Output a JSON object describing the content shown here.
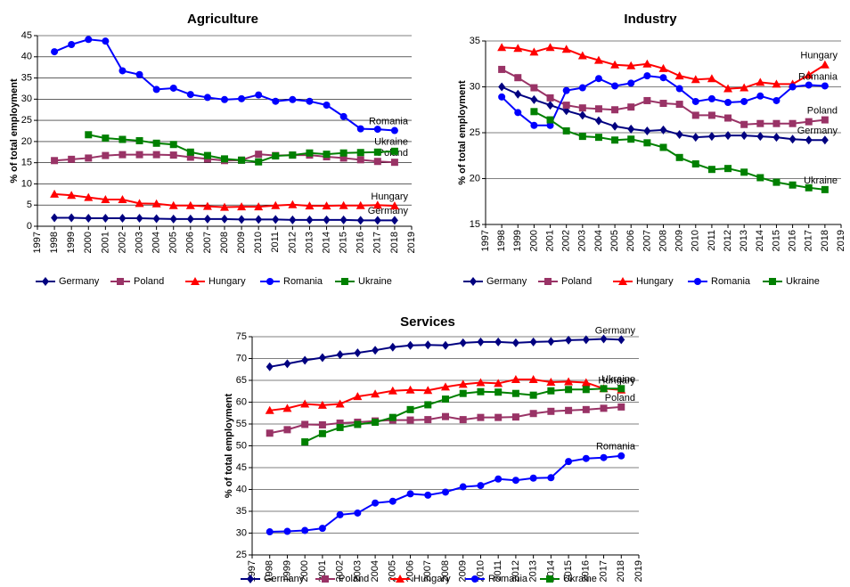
{
  "chart_data": [
    {
      "type": "line",
      "title": "Agriculture",
      "y_label": "% of total employment",
      "x": [
        1998,
        1999,
        2000,
        2001,
        2002,
        2003,
        2004,
        2005,
        2006,
        2007,
        2008,
        2009,
        2010,
        2011,
        2012,
        2013,
        2014,
        2015,
        2016,
        2017,
        2018
      ],
      "xlim": [
        1997,
        2019
      ],
      "xticks": [
        1997,
        1998,
        1999,
        2000,
        2001,
        2002,
        2003,
        2004,
        2005,
        2006,
        2007,
        2008,
        2009,
        2010,
        2011,
        2012,
        2013,
        2014,
        2015,
        2016,
        2017,
        2018,
        2019
      ],
      "ylim": [
        0,
        45
      ],
      "yticks": [
        0,
        5,
        10,
        15,
        20,
        25,
        30,
        35,
        40,
        45
      ],
      "grid": true,
      "series_end_labels": true,
      "legend": "bottom",
      "series": [
        {
          "name": "Germany",
          "color": "#000080",
          "marker": "diamond",
          "values": [
            2.0,
            2.0,
            1.9,
            1.9,
            1.9,
            1.9,
            1.8,
            1.7,
            1.7,
            1.7,
            1.7,
            1.6,
            1.6,
            1.6,
            1.5,
            1.5,
            1.5,
            1.5,
            1.4,
            1.4,
            1.4
          ]
        },
        {
          "name": "Poland",
          "color": "#993366",
          "marker": "square",
          "values": [
            15.5,
            15.8,
            16.1,
            16.7,
            16.9,
            16.9,
            16.9,
            16.8,
            16.3,
            15.9,
            15.5,
            15.6,
            17.0,
            16.7,
            16.8,
            16.8,
            16.4,
            16.1,
            15.7,
            15.3,
            15.1
          ]
        },
        {
          "name": "Hungary",
          "color": "#ff0000",
          "marker": "triangle",
          "values": [
            7.6,
            7.3,
            6.8,
            6.3,
            6.3,
            5.4,
            5.3,
            4.9,
            4.9,
            4.7,
            4.5,
            4.6,
            4.6,
            4.9,
            5.1,
            4.8,
            4.8,
            4.9,
            4.9,
            5.0,
            4.8
          ]
        },
        {
          "name": "Romania",
          "color": "#0000ff",
          "marker": "circle",
          "values": [
            41.2,
            42.9,
            44.1,
            43.7,
            36.7,
            35.8,
            32.3,
            32.6,
            31.1,
            30.4,
            29.9,
            30.1,
            31.0,
            29.5,
            29.9,
            29.5,
            28.6,
            25.9,
            23.0,
            22.9,
            22.6
          ]
        },
        {
          "name": "Ukraine",
          "color": "#008000",
          "marker": "square",
          "values": [
            null,
            null,
            21.6,
            20.8,
            20.5,
            20.2,
            19.6,
            19.3,
            17.5,
            16.7,
            15.9,
            15.6,
            15.2,
            16.6,
            16.8,
            17.3,
            17.0,
            17.3,
            17.4,
            17.5,
            17.7
          ]
        }
      ]
    },
    {
      "type": "line",
      "title": "Industry",
      "y_label": "% of total employment",
      "x": [
        1998,
        1999,
        2000,
        2001,
        2002,
        2003,
        2004,
        2005,
        2006,
        2007,
        2008,
        2009,
        2010,
        2011,
        2012,
        2013,
        2014,
        2015,
        2016,
        2017,
        2018
      ],
      "xlim": [
        1997,
        2019
      ],
      "xticks": [
        1997,
        1998,
        1999,
        2000,
        2001,
        2002,
        2003,
        2004,
        2005,
        2006,
        2007,
        2008,
        2009,
        2010,
        2011,
        2012,
        2013,
        2014,
        2015,
        2016,
        2017,
        2018,
        2019
      ],
      "ylim": [
        15,
        35
      ],
      "yticks": [
        15,
        20,
        25,
        30,
        35
      ],
      "grid": true,
      "series_end_labels": true,
      "legend": "bottom",
      "series": [
        {
          "name": "Germany",
          "color": "#000080",
          "marker": "diamond",
          "values": [
            30.0,
            29.2,
            28.6,
            28.0,
            27.4,
            26.9,
            26.3,
            25.7,
            25.4,
            25.2,
            25.3,
            24.8,
            24.5,
            24.6,
            24.7,
            24.7,
            24.6,
            24.5,
            24.3,
            24.2,
            24.2
          ]
        },
        {
          "name": "Poland",
          "color": "#993366",
          "marker": "square",
          "values": [
            31.9,
            31.0,
            29.9,
            28.8,
            28.0,
            27.7,
            27.6,
            27.5,
            27.8,
            28.5,
            28.2,
            28.1,
            26.9,
            26.9,
            26.6,
            25.9,
            26.0,
            26.0,
            26.0,
            26.2,
            26.4
          ]
        },
        {
          "name": "Hungary",
          "color": "#ff0000",
          "marker": "triangle",
          "values": [
            34.3,
            34.2,
            33.8,
            34.3,
            34.1,
            33.4,
            32.9,
            32.4,
            32.3,
            32.5,
            32.0,
            31.2,
            30.8,
            30.9,
            29.8,
            29.9,
            30.5,
            30.3,
            30.3,
            31.3,
            32.4
          ]
        },
        {
          "name": "Romania",
          "color": "#0000ff",
          "marker": "circle",
          "values": [
            28.9,
            27.2,
            25.8,
            25.8,
            29.6,
            29.9,
            30.9,
            30.1,
            30.4,
            31.2,
            31.0,
            29.8,
            28.4,
            28.7,
            28.3,
            28.4,
            29.0,
            28.5,
            30.0,
            30.2,
            30.1
          ]
        },
        {
          "name": "Ukraine",
          "color": "#008000",
          "marker": "square",
          "values": [
            null,
            null,
            27.3,
            26.4,
            25.2,
            24.6,
            24.5,
            24.2,
            24.3,
            23.9,
            23.4,
            22.3,
            21.6,
            21.0,
            21.1,
            20.7,
            20.1,
            19.6,
            19.3,
            19.0,
            18.8
          ]
        }
      ]
    },
    {
      "type": "line",
      "title": "Services",
      "y_label": "% of total employment",
      "x": [
        1998,
        1999,
        2000,
        2001,
        2002,
        2003,
        2004,
        2005,
        2006,
        2007,
        2008,
        2009,
        2010,
        2011,
        2012,
        2013,
        2014,
        2015,
        2016,
        2017,
        2018
      ],
      "xlim": [
        1997,
        2019
      ],
      "xticks": [
        1997,
        1998,
        1999,
        2000,
        2001,
        2002,
        2003,
        2004,
        2005,
        2006,
        2007,
        2008,
        2009,
        2010,
        2011,
        2012,
        2013,
        2014,
        2015,
        2016,
        2017,
        2018,
        2019
      ],
      "ylim": [
        25,
        75
      ],
      "yticks": [
        25,
        30,
        35,
        40,
        45,
        50,
        55,
        60,
        65,
        70,
        75
      ],
      "grid": true,
      "series_end_labels": true,
      "legend": "bottom",
      "series": [
        {
          "name": "Germany",
          "color": "#000080",
          "marker": "diamond",
          "values": [
            68.1,
            68.8,
            69.6,
            70.2,
            70.9,
            71.3,
            71.9,
            72.6,
            73.0,
            73.1,
            73.0,
            73.6,
            73.8,
            73.8,
            73.6,
            73.8,
            73.9,
            74.2,
            74.3,
            74.5,
            74.3
          ]
        },
        {
          "name": "Poland",
          "color": "#993366",
          "marker": "square",
          "values": [
            52.9,
            53.7,
            54.9,
            54.8,
            55.2,
            55.4,
            55.7,
            55.9,
            55.9,
            56.0,
            56.7,
            56.0,
            56.5,
            56.5,
            56.6,
            57.4,
            57.9,
            58.1,
            58.3,
            58.6,
            58.9
          ]
        },
        {
          "name": "Hungary",
          "color": "#ff0000",
          "marker": "triangle",
          "values": [
            58.1,
            58.6,
            59.6,
            59.3,
            59.6,
            61.3,
            61.9,
            62.6,
            62.8,
            62.7,
            63.5,
            64.1,
            64.5,
            64.3,
            65.2,
            65.2,
            64.6,
            64.7,
            64.5,
            63.1,
            62.8
          ]
        },
        {
          "name": "Romania",
          "color": "#0000ff",
          "marker": "circle",
          "values": [
            30.3,
            30.4,
            30.6,
            31.1,
            34.2,
            34.6,
            36.9,
            37.3,
            39.0,
            38.7,
            39.4,
            40.6,
            40.9,
            42.4,
            42.1,
            42.6,
            42.7,
            46.4,
            47.1,
            47.3,
            47.7
          ]
        },
        {
          "name": "Ukraine",
          "color": "#008000",
          "marker": "square",
          "values": [
            null,
            null,
            50.9,
            52.8,
            54.2,
            54.9,
            55.4,
            56.5,
            58.3,
            59.4,
            60.7,
            62.0,
            62.4,
            62.3,
            62.0,
            61.6,
            62.6,
            62.9,
            62.9,
            63.1,
            63.1
          ]
        }
      ]
    }
  ]
}
